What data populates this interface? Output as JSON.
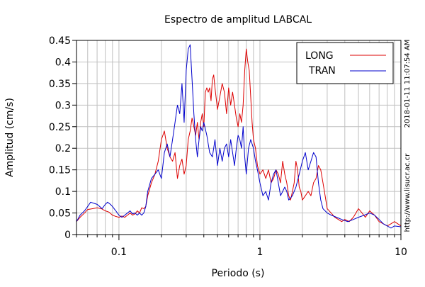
{
  "chart_data": {
    "type": "line",
    "title": "Espectro de amplitud LABCAL",
    "xlabel": "Periodo (s)",
    "ylabel": "Amplitud (cm/s)",
    "x_scale": "log",
    "xlim": [
      0.05,
      10
    ],
    "ylim": [
      0,
      0.45
    ],
    "x_ticks": [
      {
        "value": 0.1,
        "label": "0.1"
      },
      {
        "value": 1,
        "label": "1"
      },
      {
        "value": 10,
        "label": "10"
      }
    ],
    "y_ticks": [
      {
        "value": 0,
        "label": "0"
      },
      {
        "value": 0.05,
        "label": "0.05"
      },
      {
        "value": 0.1,
        "label": "0.1"
      },
      {
        "value": 0.15,
        "label": "0.15"
      },
      {
        "value": 0.2,
        "label": "0.2"
      },
      {
        "value": 0.25,
        "label": "0.25"
      },
      {
        "value": 0.3,
        "label": "0.3"
      },
      {
        "value": 0.35,
        "label": "0.35"
      },
      {
        "value": 0.4,
        "label": "0.4"
      },
      {
        "value": 0.45,
        "label": "0.45"
      }
    ],
    "grid": true,
    "legend_position": "top-right",
    "side_labels": {
      "timestamp": "2018-01-11 11:07:54 AM",
      "website": "http://www.lisucr.ac.cr"
    },
    "series": [
      {
        "name": "LONG",
        "color": "#dd0000",
        "points": [
          [
            0.05,
            0.03
          ],
          [
            0.053,
            0.04
          ],
          [
            0.057,
            0.05
          ],
          [
            0.06,
            0.058
          ],
          [
            0.065,
            0.06
          ],
          [
            0.07,
            0.062
          ],
          [
            0.075,
            0.06
          ],
          [
            0.08,
            0.055
          ],
          [
            0.085,
            0.052
          ],
          [
            0.09,
            0.045
          ],
          [
            0.095,
            0.042
          ],
          [
            0.1,
            0.04
          ],
          [
            0.105,
            0.043
          ],
          [
            0.11,
            0.04
          ],
          [
            0.115,
            0.045
          ],
          [
            0.12,
            0.05
          ],
          [
            0.125,
            0.045
          ],
          [
            0.13,
            0.048
          ],
          [
            0.135,
            0.055
          ],
          [
            0.14,
            0.05
          ],
          [
            0.145,
            0.062
          ],
          [
            0.15,
            0.06
          ],
          [
            0.155,
            0.065
          ],
          [
            0.16,
            0.09
          ],
          [
            0.17,
            0.12
          ],
          [
            0.18,
            0.14
          ],
          [
            0.19,
            0.17
          ],
          [
            0.2,
            0.22
          ],
          [
            0.21,
            0.24
          ],
          [
            0.22,
            0.2
          ],
          [
            0.23,
            0.18
          ],
          [
            0.24,
            0.17
          ],
          [
            0.25,
            0.19
          ],
          [
            0.26,
            0.13
          ],
          [
            0.27,
            0.16
          ],
          [
            0.28,
            0.175
          ],
          [
            0.29,
            0.14
          ],
          [
            0.3,
            0.16
          ],
          [
            0.31,
            0.22
          ],
          [
            0.32,
            0.24
          ],
          [
            0.33,
            0.27
          ],
          [
            0.34,
            0.25
          ],
          [
            0.35,
            0.23
          ],
          [
            0.36,
            0.26
          ],
          [
            0.37,
            0.22
          ],
          [
            0.38,
            0.26
          ],
          [
            0.39,
            0.28
          ],
          [
            0.4,
            0.25
          ],
          [
            0.41,
            0.33
          ],
          [
            0.42,
            0.34
          ],
          [
            0.43,
            0.33
          ],
          [
            0.44,
            0.34
          ],
          [
            0.45,
            0.31
          ],
          [
            0.46,
            0.36
          ],
          [
            0.47,
            0.37
          ],
          [
            0.48,
            0.34
          ],
          [
            0.5,
            0.29
          ],
          [
            0.52,
            0.32
          ],
          [
            0.54,
            0.35
          ],
          [
            0.56,
            0.33
          ],
          [
            0.58,
            0.28
          ],
          [
            0.6,
            0.34
          ],
          [
            0.62,
            0.3
          ],
          [
            0.64,
            0.33
          ],
          [
            0.66,
            0.3
          ],
          [
            0.68,
            0.27
          ],
          [
            0.7,
            0.25
          ],
          [
            0.72,
            0.28
          ],
          [
            0.74,
            0.26
          ],
          [
            0.76,
            0.3
          ],
          [
            0.78,
            0.38
          ],
          [
            0.8,
            0.43
          ],
          [
            0.82,
            0.4
          ],
          [
            0.84,
            0.38
          ],
          [
            0.86,
            0.32
          ],
          [
            0.88,
            0.26
          ],
          [
            0.9,
            0.22
          ],
          [
            0.93,
            0.2
          ],
          [
            0.96,
            0.16
          ],
          [
            1.0,
            0.14
          ],
          [
            1.05,
            0.15
          ],
          [
            1.1,
            0.13
          ],
          [
            1.15,
            0.15
          ],
          [
            1.2,
            0.12
          ],
          [
            1.25,
            0.13
          ],
          [
            1.3,
            0.15
          ],
          [
            1.35,
            0.14
          ],
          [
            1.4,
            0.12
          ],
          [
            1.45,
            0.17
          ],
          [
            1.5,
            0.14
          ],
          [
            1.55,
            0.12
          ],
          [
            1.6,
            0.09
          ],
          [
            1.65,
            0.08
          ],
          [
            1.7,
            0.1
          ],
          [
            1.75,
            0.12
          ],
          [
            1.8,
            0.17
          ],
          [
            1.85,
            0.15
          ],
          [
            1.9,
            0.11
          ],
          [
            1.95,
            0.1
          ],
          [
            2.0,
            0.08
          ],
          [
            2.1,
            0.09
          ],
          [
            2.2,
            0.1
          ],
          [
            2.3,
            0.09
          ],
          [
            2.4,
            0.12
          ],
          [
            2.5,
            0.13
          ],
          [
            2.6,
            0.16
          ],
          [
            2.7,
            0.15
          ],
          [
            2.8,
            0.12
          ],
          [
            2.9,
            0.09
          ],
          [
            3.0,
            0.06
          ],
          [
            3.2,
            0.05
          ],
          [
            3.4,
            0.04
          ],
          [
            3.6,
            0.035
          ],
          [
            3.8,
            0.03
          ],
          [
            4.0,
            0.035
          ],
          [
            4.3,
            0.03
          ],
          [
            4.6,
            0.04
          ],
          [
            5.0,
            0.06
          ],
          [
            5.3,
            0.05
          ],
          [
            5.6,
            0.04
          ],
          [
            6.0,
            0.055
          ],
          [
            6.5,
            0.045
          ],
          [
            7.0,
            0.03
          ],
          [
            7.5,
            0.025
          ],
          [
            8.0,
            0.02
          ],
          [
            8.5,
            0.025
          ],
          [
            9.0,
            0.03
          ],
          [
            9.5,
            0.025
          ],
          [
            10.0,
            0.02
          ]
        ]
      },
      {
        "name": "TRAN",
        "color": "#0000cc",
        "points": [
          [
            0.05,
            0.03
          ],
          [
            0.053,
            0.045
          ],
          [
            0.057,
            0.055
          ],
          [
            0.06,
            0.065
          ],
          [
            0.063,
            0.075
          ],
          [
            0.067,
            0.072
          ],
          [
            0.07,
            0.07
          ],
          [
            0.073,
            0.065
          ],
          [
            0.076,
            0.06
          ],
          [
            0.08,
            0.07
          ],
          [
            0.083,
            0.075
          ],
          [
            0.087,
            0.07
          ],
          [
            0.09,
            0.065
          ],
          [
            0.095,
            0.055
          ],
          [
            0.1,
            0.045
          ],
          [
            0.105,
            0.04
          ],
          [
            0.11,
            0.045
          ],
          [
            0.115,
            0.05
          ],
          [
            0.12,
            0.055
          ],
          [
            0.125,
            0.048
          ],
          [
            0.13,
            0.05
          ],
          [
            0.135,
            0.045
          ],
          [
            0.14,
            0.05
          ],
          [
            0.145,
            0.045
          ],
          [
            0.15,
            0.05
          ],
          [
            0.155,
            0.065
          ],
          [
            0.16,
            0.1
          ],
          [
            0.17,
            0.13
          ],
          [
            0.18,
            0.14
          ],
          [
            0.19,
            0.15
          ],
          [
            0.2,
            0.13
          ],
          [
            0.21,
            0.19
          ],
          [
            0.22,
            0.21
          ],
          [
            0.23,
            0.18
          ],
          [
            0.24,
            0.22
          ],
          [
            0.25,
            0.26
          ],
          [
            0.26,
            0.3
          ],
          [
            0.27,
            0.28
          ],
          [
            0.28,
            0.35
          ],
          [
            0.29,
            0.26
          ],
          [
            0.3,
            0.38
          ],
          [
            0.31,
            0.43
          ],
          [
            0.32,
            0.44
          ],
          [
            0.33,
            0.36
          ],
          [
            0.34,
            0.28
          ],
          [
            0.35,
            0.22
          ],
          [
            0.36,
            0.18
          ],
          [
            0.37,
            0.22
          ],
          [
            0.38,
            0.25
          ],
          [
            0.39,
            0.24
          ],
          [
            0.4,
            0.26
          ],
          [
            0.42,
            0.23
          ],
          [
            0.44,
            0.19
          ],
          [
            0.46,
            0.18
          ],
          [
            0.48,
            0.22
          ],
          [
            0.5,
            0.16
          ],
          [
            0.52,
            0.2
          ],
          [
            0.54,
            0.17
          ],
          [
            0.56,
            0.2
          ],
          [
            0.58,
            0.21
          ],
          [
            0.6,
            0.18
          ],
          [
            0.62,
            0.22
          ],
          [
            0.64,
            0.19
          ],
          [
            0.66,
            0.16
          ],
          [
            0.68,
            0.2
          ],
          [
            0.7,
            0.23
          ],
          [
            0.72,
            0.22
          ],
          [
            0.74,
            0.2
          ],
          [
            0.76,
            0.25
          ],
          [
            0.78,
            0.18
          ],
          [
            0.8,
            0.14
          ],
          [
            0.83,
            0.2
          ],
          [
            0.86,
            0.22
          ],
          [
            0.9,
            0.2
          ],
          [
            0.93,
            0.17
          ],
          [
            0.96,
            0.15
          ],
          [
            1.0,
            0.12
          ],
          [
            1.05,
            0.09
          ],
          [
            1.1,
            0.1
          ],
          [
            1.15,
            0.08
          ],
          [
            1.2,
            0.12
          ],
          [
            1.25,
            0.14
          ],
          [
            1.3,
            0.15
          ],
          [
            1.35,
            0.12
          ],
          [
            1.4,
            0.09
          ],
          [
            1.45,
            0.1
          ],
          [
            1.5,
            0.11
          ],
          [
            1.55,
            0.1
          ],
          [
            1.6,
            0.08
          ],
          [
            1.7,
            0.09
          ],
          [
            1.8,
            0.11
          ],
          [
            1.9,
            0.14
          ],
          [
            2.0,
            0.17
          ],
          [
            2.1,
            0.19
          ],
          [
            2.2,
            0.15
          ],
          [
            2.3,
            0.17
          ],
          [
            2.4,
            0.19
          ],
          [
            2.5,
            0.18
          ],
          [
            2.6,
            0.12
          ],
          [
            2.7,
            0.08
          ],
          [
            2.8,
            0.06
          ],
          [
            3.0,
            0.05
          ],
          [
            3.2,
            0.045
          ],
          [
            3.5,
            0.04
          ],
          [
            3.8,
            0.035
          ],
          [
            4.2,
            0.03
          ],
          [
            4.6,
            0.035
          ],
          [
            5.0,
            0.04
          ],
          [
            5.5,
            0.045
          ],
          [
            6.0,
            0.05
          ],
          [
            6.5,
            0.045
          ],
          [
            7.0,
            0.035
          ],
          [
            7.5,
            0.025
          ],
          [
            8.0,
            0.02
          ],
          [
            8.5,
            0.015
          ],
          [
            9.0,
            0.02
          ],
          [
            10.0,
            0.018
          ]
        ]
      }
    ]
  }
}
